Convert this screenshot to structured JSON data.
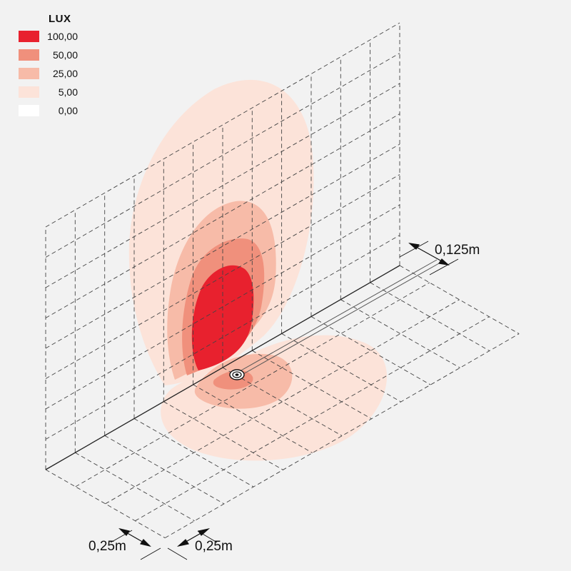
{
  "legend": {
    "title": "LUX",
    "items": [
      {
        "label": "100,00",
        "color": "#e8212e"
      },
      {
        "label": "50,00",
        "color": "#f0907c"
      },
      {
        "label": "25,00",
        "color": "#f7bba8"
      },
      {
        "label": "5,00",
        "color": "#fce3d9"
      },
      {
        "label": "0,00",
        "color": "#ffffff"
      }
    ]
  },
  "dimensions": {
    "source_offset": "0,125m",
    "grid_width": "0,25m",
    "grid_depth": "0,25m"
  },
  "colors": {
    "background": "#f2f2f2",
    "grid_line": "#444444",
    "axis_line": "#222222"
  }
}
